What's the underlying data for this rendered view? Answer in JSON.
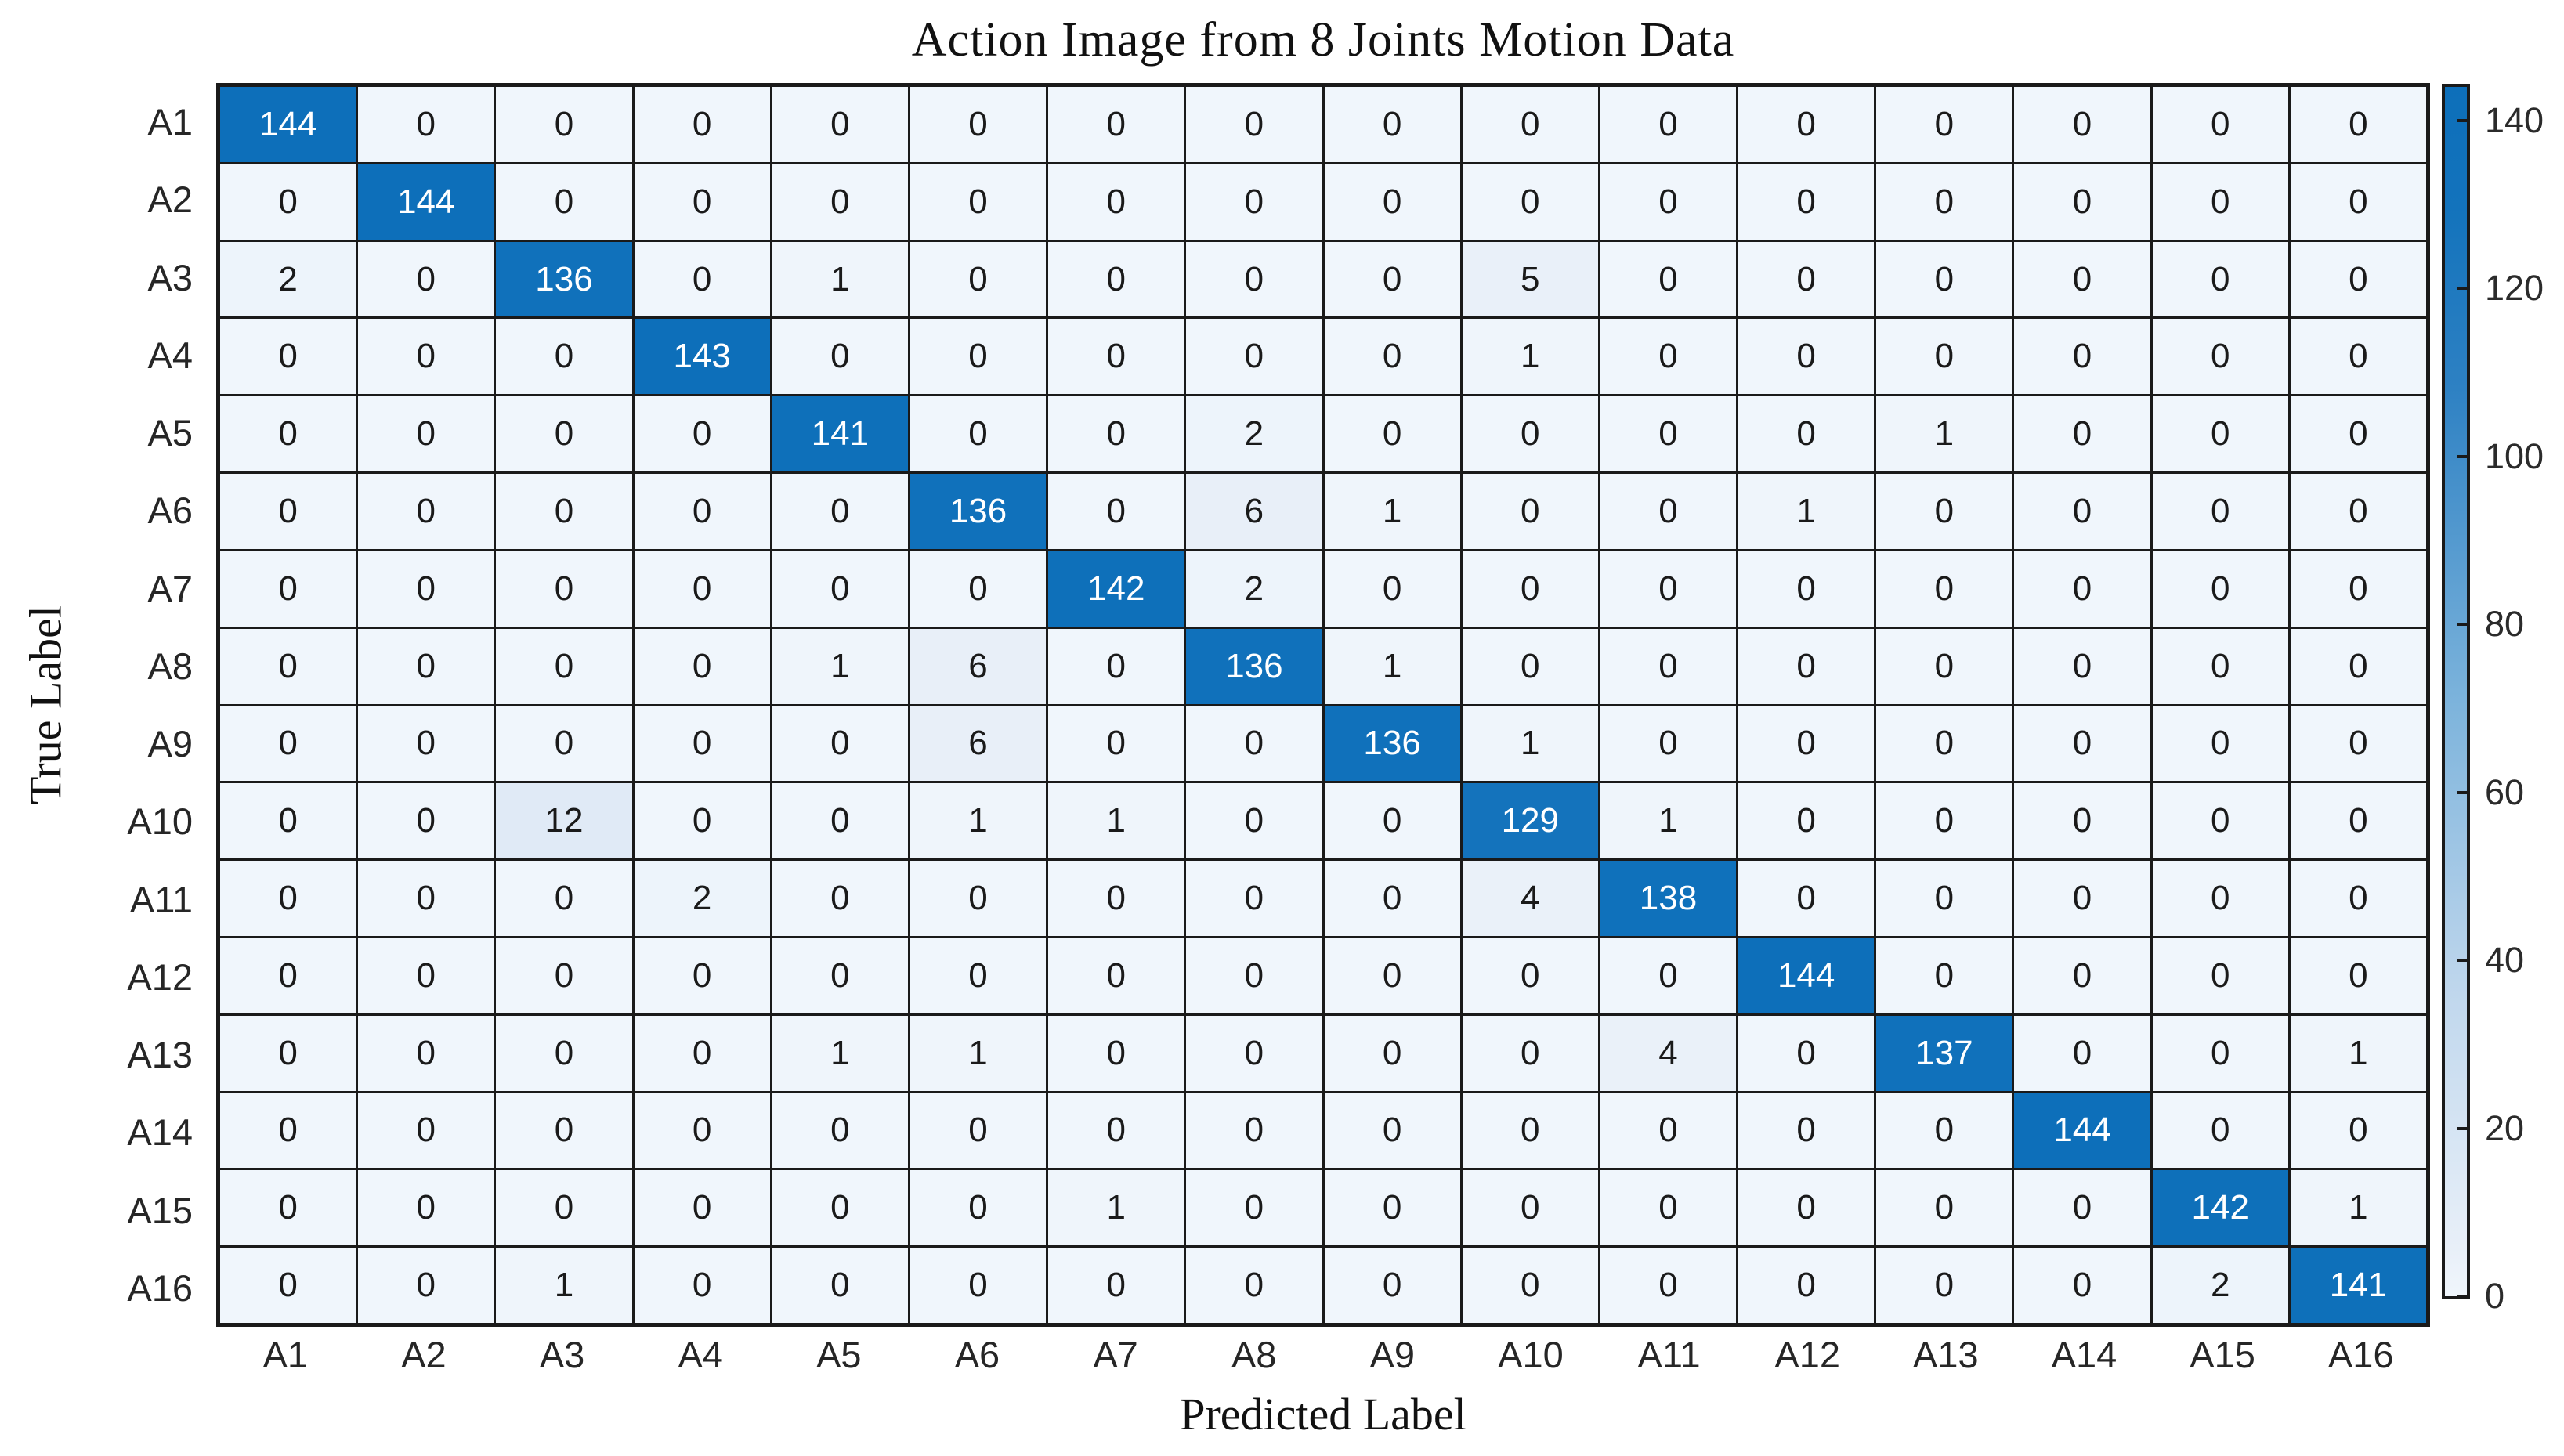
{
  "title": "Action Image from 8 Joints Motion Data",
  "chart_data": {
    "type": "heatmap",
    "title": "Action Image from 8 Joints Motion Data",
    "xlabel": "Predicted Label",
    "ylabel": "True Label",
    "x_categories": [
      "A1",
      "A2",
      "A3",
      "A4",
      "A5",
      "A6",
      "A7",
      "A8",
      "A9",
      "A10",
      "A11",
      "A12",
      "A13",
      "A14",
      "A15",
      "A16"
    ],
    "y_categories": [
      "A1",
      "A2",
      "A3",
      "A4",
      "A5",
      "A6",
      "A7",
      "A8",
      "A9",
      "A10",
      "A11",
      "A12",
      "A13",
      "A14",
      "A15",
      "A16"
    ],
    "matrix": [
      [
        144,
        0,
        0,
        0,
        0,
        0,
        0,
        0,
        0,
        0,
        0,
        0,
        0,
        0,
        0,
        0
      ],
      [
        0,
        144,
        0,
        0,
        0,
        0,
        0,
        0,
        0,
        0,
        0,
        0,
        0,
        0,
        0,
        0
      ],
      [
        2,
        0,
        136,
        0,
        1,
        0,
        0,
        0,
        0,
        5,
        0,
        0,
        0,
        0,
        0,
        0
      ],
      [
        0,
        0,
        0,
        143,
        0,
        0,
        0,
        0,
        0,
        1,
        0,
        0,
        0,
        0,
        0,
        0
      ],
      [
        0,
        0,
        0,
        0,
        141,
        0,
        0,
        2,
        0,
        0,
        0,
        0,
        1,
        0,
        0,
        0
      ],
      [
        0,
        0,
        0,
        0,
        0,
        136,
        0,
        6,
        1,
        0,
        0,
        1,
        0,
        0,
        0,
        0
      ],
      [
        0,
        0,
        0,
        0,
        0,
        0,
        142,
        2,
        0,
        0,
        0,
        0,
        0,
        0,
        0,
        0
      ],
      [
        0,
        0,
        0,
        0,
        1,
        6,
        0,
        136,
        1,
        0,
        0,
        0,
        0,
        0,
        0,
        0
      ],
      [
        0,
        0,
        0,
        0,
        0,
        6,
        0,
        0,
        136,
        1,
        0,
        0,
        0,
        0,
        0,
        0
      ],
      [
        0,
        0,
        12,
        0,
        0,
        1,
        1,
        0,
        0,
        129,
        1,
        0,
        0,
        0,
        0,
        0
      ],
      [
        0,
        0,
        0,
        2,
        0,
        0,
        0,
        0,
        0,
        4,
        138,
        0,
        0,
        0,
        0,
        0
      ],
      [
        0,
        0,
        0,
        0,
        0,
        0,
        0,
        0,
        0,
        0,
        0,
        144,
        0,
        0,
        0,
        0
      ],
      [
        0,
        0,
        0,
        0,
        1,
        1,
        0,
        0,
        0,
        0,
        4,
        0,
        137,
        0,
        0,
        1
      ],
      [
        0,
        0,
        0,
        0,
        0,
        0,
        0,
        0,
        0,
        0,
        0,
        0,
        0,
        144,
        0,
        0
      ],
      [
        0,
        0,
        0,
        0,
        0,
        0,
        1,
        0,
        0,
        0,
        0,
        0,
        0,
        0,
        142,
        1
      ],
      [
        0,
        0,
        1,
        0,
        0,
        0,
        0,
        0,
        0,
        0,
        0,
        0,
        0,
        0,
        2,
        141
      ]
    ],
    "colorbar": {
      "ticks": [
        0,
        20,
        40,
        60,
        80,
        100,
        120,
        140
      ],
      "vmin": 0,
      "vmax": 144
    },
    "legend_position": "right",
    "grid": true,
    "colors": {
      "ramp": [
        {
          "t": 0.0,
          "c": "#f0f6fc"
        },
        {
          "t": 0.04,
          "c": "#e8eff8"
        },
        {
          "t": 0.125,
          "c": "#d8e6f4"
        },
        {
          "t": 0.25,
          "c": "#c0d7ed"
        },
        {
          "t": 0.5,
          "c": "#7ab2db"
        },
        {
          "t": 0.75,
          "c": "#2e81c3"
        },
        {
          "t": 0.9,
          "c": "#1373bc"
        },
        {
          "t": 1.0,
          "c": "#0d6fba"
        }
      ],
      "grid_line": "#1a1a1a",
      "text_dark": "#1a1a1a",
      "text_light": "#ffffff",
      "background": "#ffffff"
    },
    "text_switch_value": 100
  }
}
